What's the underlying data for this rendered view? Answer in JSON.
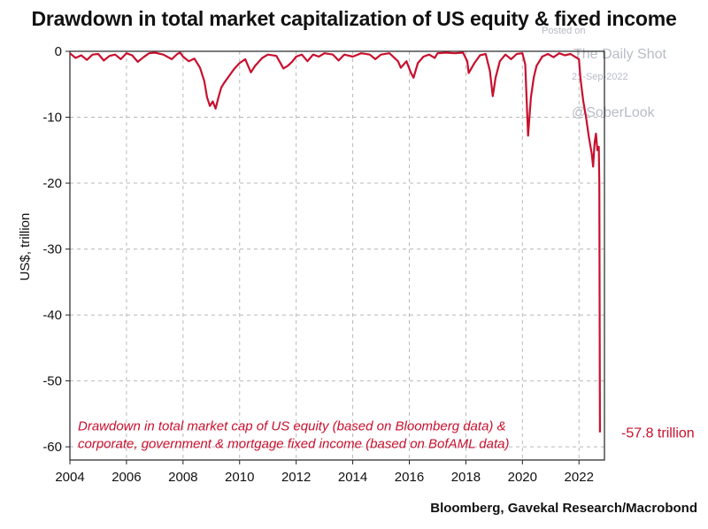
{
  "chart_data": {
    "type": "line",
    "title": "Drawdown in total market capitalization of US equity & fixed income",
    "ylabel": "US$, trillion",
    "xlabel": "",
    "xlim": [
      2004,
      2022.9
    ],
    "ylim": [
      -62,
      0
    ],
    "x_ticks": [
      "2004",
      "2006",
      "2008",
      "2010",
      "2012",
      "2014",
      "2016",
      "2018",
      "2020",
      "2022"
    ],
    "y_ticks": [
      "0",
      "-10",
      "-20",
      "-30",
      "-40",
      "-50",
      "-60"
    ],
    "grid": true,
    "color": "#c8102e",
    "annotation": [
      "Drawdown in total market cap of US equity (based on Bloomberg data) &",
      "corporate, government & mortgage fixed income (based on BofAML data)"
    ],
    "end_label": "-57.8 trillion",
    "series": [
      {
        "points": [
          [
            2004.0,
            -0.3
          ],
          [
            2004.2,
            -1.0
          ],
          [
            2004.4,
            -0.6
          ],
          [
            2004.6,
            -1.3
          ],
          [
            2004.8,
            -0.5
          ],
          [
            2005.0,
            -0.4
          ],
          [
            2005.2,
            -1.4
          ],
          [
            2005.4,
            -0.7
          ],
          [
            2005.6,
            -0.5
          ],
          [
            2005.8,
            -1.2
          ],
          [
            2006.0,
            -0.3
          ],
          [
            2006.2,
            -0.6
          ],
          [
            2006.4,
            -1.6
          ],
          [
            2006.6,
            -0.9
          ],
          [
            2006.8,
            -0.3
          ],
          [
            2007.0,
            -0.2
          ],
          [
            2007.3,
            -0.5
          ],
          [
            2007.6,
            -1.2
          ],
          [
            2007.8,
            -0.4
          ],
          [
            2007.9,
            -0.2
          ],
          [
            2008.0,
            -0.8
          ],
          [
            2008.2,
            -1.5
          ],
          [
            2008.4,
            -1.1
          ],
          [
            2008.6,
            -2.5
          ],
          [
            2008.75,
            -4.5
          ],
          [
            2008.85,
            -7.0
          ],
          [
            2008.95,
            -8.3
          ],
          [
            2009.05,
            -7.6
          ],
          [
            2009.15,
            -8.7
          ],
          [
            2009.25,
            -7.0
          ],
          [
            2009.35,
            -5.5
          ],
          [
            2009.45,
            -4.8
          ],
          [
            2009.6,
            -3.9
          ],
          [
            2009.8,
            -2.7
          ],
          [
            2010.0,
            -1.8
          ],
          [
            2010.2,
            -1.2
          ],
          [
            2010.4,
            -3.2
          ],
          [
            2010.55,
            -2.2
          ],
          [
            2010.8,
            -1.0
          ],
          [
            2011.0,
            -0.5
          ],
          [
            2011.3,
            -0.7
          ],
          [
            2011.55,
            -2.6
          ],
          [
            2011.7,
            -2.2
          ],
          [
            2011.85,
            -1.6
          ],
          [
            2012.0,
            -0.8
          ],
          [
            2012.2,
            -0.5
          ],
          [
            2012.4,
            -1.5
          ],
          [
            2012.6,
            -0.5
          ],
          [
            2012.8,
            -0.8
          ],
          [
            2013.0,
            -0.3
          ],
          [
            2013.3,
            -0.5
          ],
          [
            2013.5,
            -1.4
          ],
          [
            2013.7,
            -0.5
          ],
          [
            2014.0,
            -0.8
          ],
          [
            2014.3,
            -0.3
          ],
          [
            2014.6,
            -0.5
          ],
          [
            2014.8,
            -1.2
          ],
          [
            2015.0,
            -0.5
          ],
          [
            2015.3,
            -0.3
          ],
          [
            2015.6,
            -1.5
          ],
          [
            2015.7,
            -2.5
          ],
          [
            2015.9,
            -1.5
          ],
          [
            2016.05,
            -3.2
          ],
          [
            2016.15,
            -4.0
          ],
          [
            2016.3,
            -1.8
          ],
          [
            2016.5,
            -0.8
          ],
          [
            2016.7,
            -0.5
          ],
          [
            2016.9,
            -1.0
          ],
          [
            2017.0,
            -0.3
          ],
          [
            2017.3,
            -0.2
          ],
          [
            2017.6,
            -0.3
          ],
          [
            2017.9,
            -0.2
          ],
          [
            2018.05,
            -1.5
          ],
          [
            2018.1,
            -3.3
          ],
          [
            2018.3,
            -1.8
          ],
          [
            2018.5,
            -0.6
          ],
          [
            2018.7,
            -0.4
          ],
          [
            2018.85,
            -3.0
          ],
          [
            2018.95,
            -6.8
          ],
          [
            2019.05,
            -4.0
          ],
          [
            2019.2,
            -1.5
          ],
          [
            2019.4,
            -0.5
          ],
          [
            2019.6,
            -1.2
          ],
          [
            2019.8,
            -0.4
          ],
          [
            2020.0,
            -0.3
          ],
          [
            2020.1,
            -2.0
          ],
          [
            2020.2,
            -12.8
          ],
          [
            2020.3,
            -7.0
          ],
          [
            2020.4,
            -4.0
          ],
          [
            2020.5,
            -2.2
          ],
          [
            2020.7,
            -0.8
          ],
          [
            2020.9,
            -0.4
          ],
          [
            2021.1,
            -0.9
          ],
          [
            2021.3,
            -0.3
          ],
          [
            2021.5,
            -0.6
          ],
          [
            2021.7,
            -0.4
          ],
          [
            2021.85,
            -0.8
          ],
          [
            2022.0,
            -1.2
          ],
          [
            2022.05,
            -4.0
          ],
          [
            2022.15,
            -7.5
          ],
          [
            2022.25,
            -10.0
          ],
          [
            2022.35,
            -13.0
          ],
          [
            2022.45,
            -15.5
          ],
          [
            2022.5,
            -17.5
          ],
          [
            2022.55,
            -14.0
          ],
          [
            2022.6,
            -12.5
          ],
          [
            2022.65,
            -15.0
          ],
          [
            2022.7,
            -14.5
          ],
          [
            2022.72,
            -20.0
          ],
          [
            2022.74,
            -57.8
          ]
        ]
      }
    ]
  },
  "footer": {
    "source": "Bloomberg, Gavekal Research/Macrobond"
  },
  "watermark": {
    "line1": "Posted on",
    "line2": "The Daily Shot",
    "line3": "21-Sep-2022",
    "line4": "@SoberLook"
  }
}
